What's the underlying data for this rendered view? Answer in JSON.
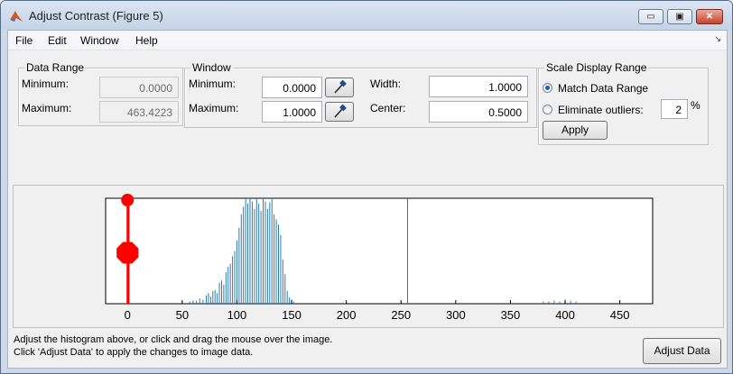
{
  "window": {
    "title": "Adjust Contrast (Figure 5)",
    "controls": {
      "minimize": "▭",
      "maximize": "▣",
      "close": "✕"
    }
  },
  "menu": {
    "items": [
      "File",
      "Edit",
      "Window",
      "Help"
    ],
    "overflow_icon": "chevron-down-icon"
  },
  "data_range": {
    "title": "Data Range",
    "min_label": "Minimum:",
    "min_value": "0.0000",
    "max_label": "Maximum:",
    "max_value": "463.4223"
  },
  "window_panel": {
    "title": "Window",
    "min_label": "Minimum:",
    "min_value": "0.0000",
    "max_label": "Maximum:",
    "max_value": "1.0000",
    "width_label": "Width:",
    "width_value": "1.0000",
    "center_label": "Center:",
    "center_value": "0.5000"
  },
  "scale": {
    "title": "Scale Display Range",
    "match_label": "Match Data Range",
    "outliers_label": "Eliminate outliers:",
    "outliers_value": "2",
    "percent": "%",
    "apply_label": "Apply",
    "selected": "match"
  },
  "chart_data": {
    "type": "bar",
    "xlim": [
      -20,
      480
    ],
    "xticks": [
      "0",
      "50",
      "100",
      "150",
      "200",
      "250",
      "300",
      "350",
      "400",
      "450"
    ],
    "bar_color": "#2c7ab0",
    "window_marker_color": "#ff0000",
    "window_min": 0,
    "window_max": 1,
    "bins": [
      {
        "x": 57,
        "h": 0.02
      },
      {
        "x": 60,
        "h": 0.03
      },
      {
        "x": 63,
        "h": 0.03
      },
      {
        "x": 66,
        "h": 0.05
      },
      {
        "x": 69,
        "h": 0.04
      },
      {
        "x": 72,
        "h": 0.08
      },
      {
        "x": 74,
        "h": 0.1
      },
      {
        "x": 76,
        "h": 0.07
      },
      {
        "x": 78,
        "h": 0.12
      },
      {
        "x": 80,
        "h": 0.13
      },
      {
        "x": 82,
        "h": 0.1
      },
      {
        "x": 84,
        "h": 0.2
      },
      {
        "x": 86,
        "h": 0.22
      },
      {
        "x": 88,
        "h": 0.18
      },
      {
        "x": 90,
        "h": 0.3
      },
      {
        "x": 92,
        "h": 0.35
      },
      {
        "x": 94,
        "h": 0.38
      },
      {
        "x": 96,
        "h": 0.45
      },
      {
        "x": 98,
        "h": 0.5
      },
      {
        "x": 100,
        "h": 0.6
      },
      {
        "x": 102,
        "h": 0.72
      },
      {
        "x": 104,
        "h": 0.85
      },
      {
        "x": 106,
        "h": 0.92
      },
      {
        "x": 108,
        "h": 1.0
      },
      {
        "x": 110,
        "h": 0.95
      },
      {
        "x": 112,
        "h": 1.0
      },
      {
        "x": 114,
        "h": 0.97
      },
      {
        "x": 116,
        "h": 0.9
      },
      {
        "x": 118,
        "h": 1.0
      },
      {
        "x": 120,
        "h": 0.95
      },
      {
        "x": 122,
        "h": 0.88
      },
      {
        "x": 124,
        "h": 1.0
      },
      {
        "x": 126,
        "h": 0.97
      },
      {
        "x": 128,
        "h": 0.9
      },
      {
        "x": 130,
        "h": 0.96
      },
      {
        "x": 132,
        "h": 1.0
      },
      {
        "x": 134,
        "h": 0.85
      },
      {
        "x": 136,
        "h": 0.8
      },
      {
        "x": 138,
        "h": 0.75
      },
      {
        "x": 140,
        "h": 0.65
      },
      {
        "x": 142,
        "h": 0.42
      },
      {
        "x": 144,
        "h": 0.28
      },
      {
        "x": 146,
        "h": 0.12
      },
      {
        "x": 148,
        "h": 0.06
      },
      {
        "x": 150,
        "h": 0.04
      },
      {
        "x": 152,
        "h": 0.02
      },
      {
        "x": 256,
        "h": 1.0
      },
      {
        "x": 380,
        "h": 0.02
      },
      {
        "x": 385,
        "h": 0.02
      },
      {
        "x": 390,
        "h": 0.03
      },
      {
        "x": 395,
        "h": 0.02
      },
      {
        "x": 400,
        "h": 0.04
      },
      {
        "x": 405,
        "h": 0.03
      },
      {
        "x": 410,
        "h": 0.02
      }
    ]
  },
  "footer": {
    "line1": "Adjust the histogram above, or click and drag the mouse over the image.",
    "line2": "Click 'Adjust Data' to apply the changes to image data.",
    "adjust_label": "Adjust Data"
  }
}
